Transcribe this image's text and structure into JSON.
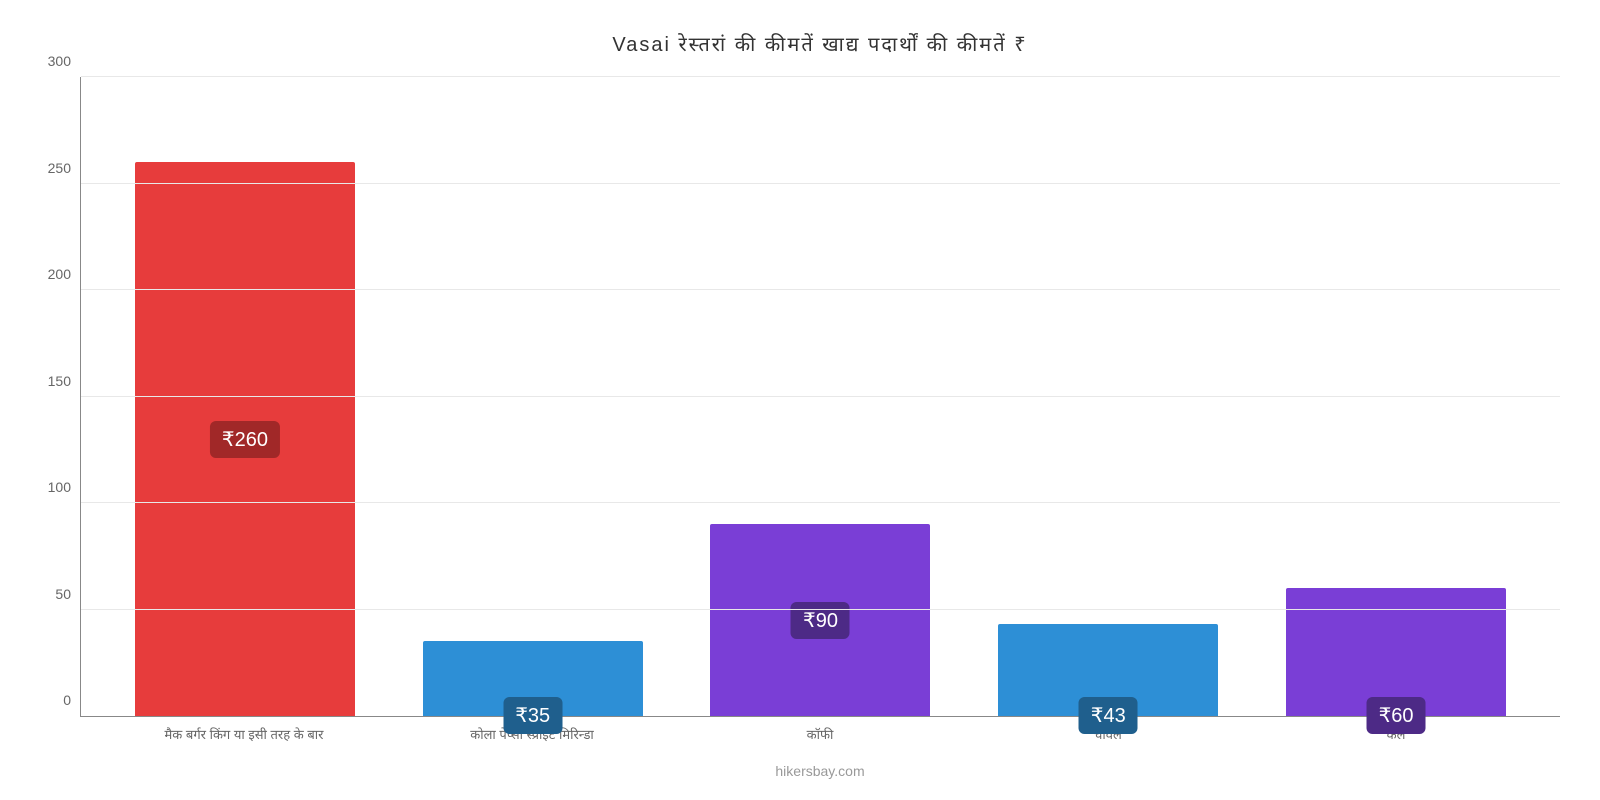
{
  "chart": {
    "type": "bar",
    "title": "Vasai रेस्तरां की कीमतें खाद्य पदार्थों की कीमतें ₹",
    "attribution": "hikersbay.com",
    "background_color": "#ffffff",
    "grid_color": "#e8e8e8",
    "axis_color": "#888888",
    "text_color": "#666666",
    "title_color": "#333333",
    "title_fontsize": 20,
    "label_fontsize": 13,
    "tick_fontsize": 14,
    "value_fontsize": 20,
    "ylim": [
      0,
      300
    ],
    "ytick_step": 50,
    "yticks": [
      0,
      50,
      100,
      150,
      200,
      250,
      300
    ],
    "bar_width_ratio": 0.8,
    "categories": [
      "मैक बर्गर किंग या इसी तरह के बार",
      "कोला पेप्सी स्प्राइट मिरिन्डा",
      "कॉफी",
      "चावल",
      "केले"
    ],
    "values": [
      260,
      35,
      90,
      43,
      60
    ],
    "value_labels": [
      "₹260",
      "₹35",
      "₹90",
      "₹43",
      "₹60"
    ],
    "bar_colors": [
      "#e73c3c",
      "#2d8fd6",
      "#7a3ed6",
      "#2d8fd6",
      "#7a3ed6"
    ],
    "badge_colors": [
      "#a12828",
      "#1f5f8d",
      "#4d2a86",
      "#1f5f8d",
      "#4d2a86"
    ],
    "badge_text_color": "#ffffff"
  }
}
